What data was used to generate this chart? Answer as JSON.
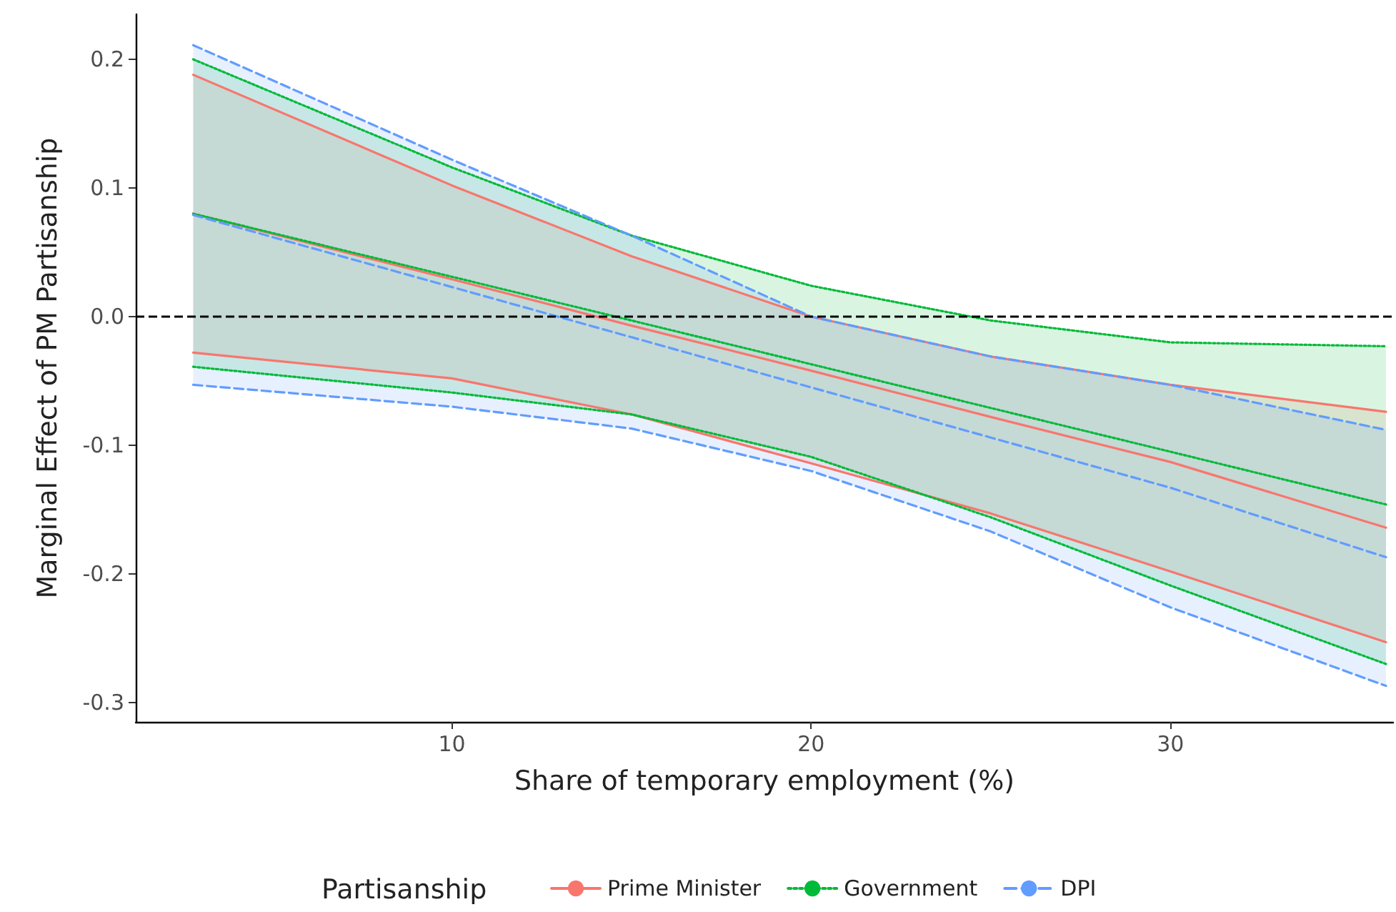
{
  "chart_data": {
    "type": "line",
    "xlabel": "Share of temporary employment (%)",
    "ylabel": "Marginal Effect of PM Partisanship",
    "legend_title": "Partisanship",
    "x": [
      2.8,
      10,
      15,
      20,
      25,
      30,
      36
    ],
    "series": [
      {
        "name": "Prime Minister",
        "color": "#f8766d",
        "line_style": "solid",
        "values": [
          0.08,
          0.029,
          -0.007,
          -0.042,
          -0.078,
          -0.113,
          -0.164
        ],
        "lower": [
          -0.028,
          -0.048,
          -0.076,
          -0.114,
          -0.153,
          -0.198,
          -0.253
        ],
        "upper": [
          0.188,
          0.102,
          0.047,
          0.0,
          -0.031,
          -0.053,
          -0.074
        ]
      },
      {
        "name": "Government",
        "color": "#00ba38",
        "line_style": "dotted",
        "values": [
          0.08,
          0.031,
          -0.003,
          -0.037,
          -0.071,
          -0.105,
          -0.146
        ],
        "lower": [
          -0.039,
          -0.059,
          -0.076,
          -0.109,
          -0.156,
          -0.209,
          -0.27
        ],
        "upper": [
          0.2,
          0.116,
          0.063,
          0.024,
          -0.003,
          -0.02,
          -0.023
        ]
      },
      {
        "name": "DPI",
        "color": "#619cff",
        "line_style": "dashed",
        "values": [
          0.079,
          0.023,
          -0.016,
          -0.055,
          -0.094,
          -0.133,
          -0.187
        ],
        "lower": [
          -0.053,
          -0.07,
          -0.087,
          -0.12,
          -0.167,
          -0.226,
          -0.287
        ],
        "upper": [
          0.211,
          0.122,
          0.063,
          0.0,
          -0.031,
          -0.053,
          -0.088
        ]
      },
      {
        "color": "#f8766d",
        "line_style": "solid",
        "values": [
          -0.028,
          -0.048,
          -0.076,
          -0.114,
          -0.153,
          -0.198,
          -0.253
        ]
      },
      {
        "color": "#f8766d",
        "line_style": "solid",
        "values": [
          0.188,
          0.102,
          0.047,
          0.0,
          -0.031,
          -0.053,
          -0.074
        ]
      },
      {
        "color": "#00ba38",
        "line_style": "dotted",
        "values": [
          -0.039,
          -0.059,
          -0.076,
          -0.109,
          -0.156,
          -0.209,
          -0.27
        ]
      },
      {
        "color": "#00ba38",
        "line_style": "dotted",
        "values": [
          0.2,
          0.116,
          0.063,
          0.024,
          -0.003,
          -0.02,
          -0.023
        ]
      },
      {
        "color": "#619cff",
        "line_style": "dashed",
        "values": [
          -0.053,
          -0.07,
          -0.087,
          -0.12,
          -0.167,
          -0.226,
          -0.287
        ]
      },
      {
        "color": "#619cff",
        "line_style": "dashed",
        "values": [
          0.211,
          0.122,
          0.063,
          0.0,
          -0.031,
          -0.053,
          -0.088
        ]
      }
    ],
    "xlim": [
      1.2,
      36.2
    ],
    "xticks": [
      10,
      20,
      30
    ],
    "ylim": [
      -0.315,
      0.235
    ],
    "yticks": [
      {
        "value": -0.3,
        "label": "-0.3"
      },
      {
        "value": -0.2,
        "label": "-0.2"
      },
      {
        "value": -0.1,
        "label": "-0.1"
      },
      {
        "value": 0,
        "label": "0.0"
      },
      {
        "value": 0.1,
        "label": "0.1"
      },
      {
        "value": 0.2,
        "label": "0.2"
      }
    ],
    "ref_lines": [
      {
        "axis": "y",
        "value": 0,
        "color": "#000000",
        "line_style": "dashed"
      }
    ],
    "grid": false,
    "legend": "bottom"
  }
}
